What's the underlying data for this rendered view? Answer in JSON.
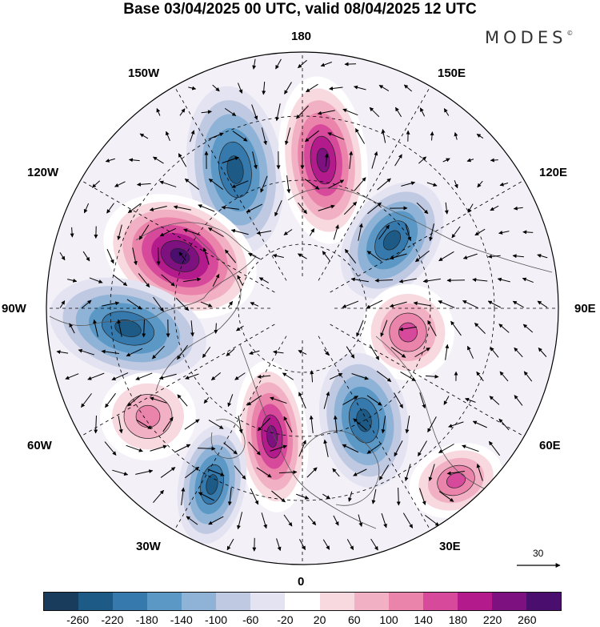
{
  "title": "Base 03/04/2025 00 UTC, valid 08/04/2025 12 UTC",
  "brand": "MODES",
  "brand_mark": "©",
  "longitude_labels": {
    "lon_180": "180",
    "lon_150w": "150W",
    "lon_150e": "150E",
    "lon_120w": "120W",
    "lon_120e": "120E",
    "lon_90w": "90W",
    "lon_90e": "90E",
    "lon_60w": "60W",
    "lon_60e": "60E",
    "lon_30w": "30W",
    "lon_30e": "30E",
    "lon_0": "0"
  },
  "wind_scale": {
    "value": "30"
  },
  "colorbar": {
    "ticks": [
      "-260",
      "-220",
      "-180",
      "-140",
      "-100",
      "-60",
      "-20",
      "20",
      "60",
      "100",
      "140",
      "180",
      "220",
      "260"
    ],
    "colors": [
      "#193b5c",
      "#1d5a85",
      "#3579ad",
      "#5b98c6",
      "#8fb3d7",
      "#c0c9e2",
      "#e4e3f1",
      "#ffffff",
      "#f7d9df",
      "#f2b0c4",
      "#eb84ab",
      "#d7499a",
      "#b31b8c",
      "#7e1180",
      "#4a0f6e"
    ]
  },
  "anomaly_centers": [
    {
      "id": "neg-alaska",
      "sign": "negative",
      "value": -200
    },
    {
      "id": "pos-bering",
      "sign": "positive",
      "value": 240
    },
    {
      "id": "pos-canada",
      "sign": "positive",
      "value": 260
    },
    {
      "id": "neg-labrador",
      "sign": "negative",
      "value": -200
    },
    {
      "id": "neg-siberia",
      "sign": "negative",
      "value": -180
    },
    {
      "id": "pos-central-asia",
      "sign": "positive",
      "value": 160
    },
    {
      "id": "neg-europe",
      "sign": "negative",
      "value": -180
    },
    {
      "id": "pos-greenland",
      "sign": "positive",
      "value": 240
    },
    {
      "id": "neg-atlantic",
      "sign": "negative",
      "value": -200
    },
    {
      "id": "pos-mid-atlantic",
      "sign": "positive",
      "value": 120
    },
    {
      "id": "pos-middle-east",
      "sign": "positive",
      "value": 140
    }
  ]
}
